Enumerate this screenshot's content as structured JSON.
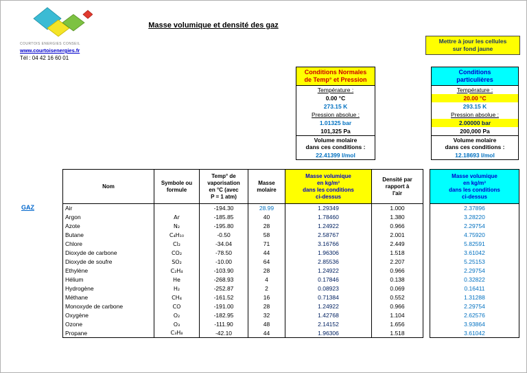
{
  "branding": {
    "company": "COURTOIS ENERGIES CONSEIL",
    "website": "www.courtoisenergies.fr",
    "phone": "Tél : 04 42 16 60 01"
  },
  "title": "Masse volumique et densité des gaz",
  "note": "Mettre à jour les cellules\nsur fond jaune",
  "normal_conditions": {
    "title": "Conditions Normales\nde Temp° et Pression",
    "temperature_label": "Température :",
    "temperature_c": "0.00 °C",
    "temperature_k": "273.15 K",
    "pressure_label": "Pression absolue :",
    "pressure_bar": "1.01325 bar",
    "pressure_pa": "101,325 Pa",
    "molar_volume_label": "Volume molaire\ndans ces conditions :",
    "molar_volume": "22.41399 l/mol"
  },
  "particular_conditions": {
    "title": "Conditions\nparticulières",
    "temperature_label": "Température :",
    "temperature_c": "20.00 °C",
    "temperature_k": "293.15 K",
    "pressure_label": "Pression absolue :",
    "pressure_bar": "2.00000 bar",
    "pressure_pa": "200,000 Pa",
    "molar_volume_label": "Volume molaire\ndans ces conditions :",
    "molar_volume": "12.18693 l/mol"
  },
  "gas_table": {
    "row_label": "GAZ",
    "headers": {
      "name": "Nom",
      "symbol": "Symbole ou\nformule",
      "vaporization": "Temp° de\nvaporisation\nen °C (avec\nP = 1 atm)",
      "molar_mass": "Masse\nmolaire",
      "density_normal": "Masse volumique\nen kg/m³\ndans les conditions\nci-dessus",
      "relative_density": "Densité par\nrapport à\nl'air",
      "density_particular": "Masse volumique\nen kg/m³\ndans les conditions\nci-dessus"
    },
    "rows": [
      {
        "name": "Air",
        "symbol": "",
        "vaporization": "-194.30",
        "molar_mass": "28.99",
        "molar_mass_highlight": true,
        "density_normal": "1.29349",
        "relative_density": "1.000",
        "density_particular": "2.37896"
      },
      {
        "name": "Argon",
        "symbol": "Ar",
        "vaporization": "-185.85",
        "molar_mass": "40",
        "density_normal": "1.78460",
        "relative_density": "1.380",
        "density_particular": "3.28220"
      },
      {
        "name": "Azote",
        "symbol": "N₂",
        "vaporization": "-195.80",
        "molar_mass": "28",
        "density_normal": "1.24922",
        "relative_density": "0.966",
        "density_particular": "2.29754"
      },
      {
        "name": "Butane",
        "symbol": "C₄H₁₀",
        "vaporization": "-0.50",
        "molar_mass": "58",
        "density_normal": "2.58767",
        "relative_density": "2.001",
        "density_particular": "4.75920"
      },
      {
        "name": "Chlore",
        "symbol": "Cl₂",
        "vaporization": "-34.04",
        "molar_mass": "71",
        "density_normal": "3.16766",
        "relative_density": "2.449",
        "density_particular": "5.82591"
      },
      {
        "name": "Dioxyde de carbone",
        "symbol": "CO₂",
        "vaporization": "-78.50",
        "molar_mass": "44",
        "density_normal": "1.96306",
        "relative_density": "1.518",
        "density_particular": "3.61042"
      },
      {
        "name": "Dioxyde de soufre",
        "symbol": "SO₂",
        "vaporization": "-10.00",
        "molar_mass": "64",
        "density_normal": "2.85536",
        "relative_density": "2.207",
        "density_particular": "5.25153"
      },
      {
        "name": "Ethylène",
        "symbol": "C₂H₄",
        "vaporization": "-103.90",
        "molar_mass": "28",
        "density_normal": "1.24922",
        "relative_density": "0.966",
        "density_particular": "2.29754"
      },
      {
        "name": "Hélium",
        "symbol": "He",
        "vaporization": "-268.93",
        "molar_mass": "4",
        "density_normal": "0.17846",
        "relative_density": "0.138",
        "density_particular": "0.32822"
      },
      {
        "name": "Hydrogène",
        "symbol": "H₂",
        "vaporization": "-252.87",
        "molar_mass": "2",
        "density_normal": "0.08923",
        "relative_density": "0.069",
        "density_particular": "0.16411"
      },
      {
        "name": "Méthane",
        "symbol": "CH₄",
        "vaporization": "-161.52",
        "molar_mass": "16",
        "density_normal": "0.71384",
        "relative_density": "0.552",
        "density_particular": "1.31288"
      },
      {
        "name": "Monoxyde de carbone",
        "symbol": "CO",
        "vaporization": "-191.00",
        "molar_mass": "28",
        "density_normal": "1.24922",
        "relative_density": "0.966",
        "density_particular": "2.29754"
      },
      {
        "name": "Oxygène",
        "symbol": "O₂",
        "vaporization": "-182.95",
        "molar_mass": "32",
        "density_normal": "1.42768",
        "relative_density": "1.104",
        "density_particular": "2.62576"
      },
      {
        "name": "Ozone",
        "symbol": "O₃",
        "vaporization": "-111.90",
        "molar_mass": "48",
        "density_normal": "2.14152",
        "relative_density": "1.656",
        "density_particular": "3.93864"
      },
      {
        "name": "Propane",
        "symbol": "C₃H₈",
        "vaporization": "-42.10",
        "molar_mass": "44",
        "density_normal": "1.96306",
        "relative_density": "1.518",
        "density_particular": "3.61042"
      }
    ]
  },
  "colors": {
    "highlight_yellow": "#FFFF00",
    "highlight_cyan": "#00FFFF",
    "value_blue": "#0070C0",
    "value_navy": "#002060",
    "header_red": "#CC0000",
    "header_blue": "#0000CC"
  }
}
